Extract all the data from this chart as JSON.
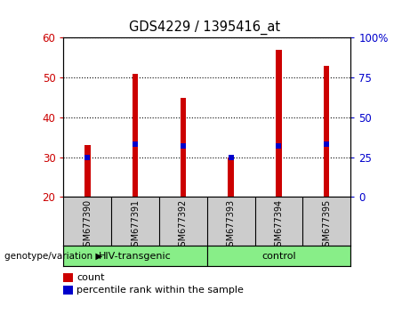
{
  "title": "GDS4229 / 1395416_at",
  "samples": [
    "GSM677390",
    "GSM677391",
    "GSM677392",
    "GSM677393",
    "GSM677394",
    "GSM677395"
  ],
  "counts": [
    33,
    51,
    45,
    30,
    57,
    53
  ],
  "percentile_ranks": [
    25,
    33,
    32,
    25,
    32,
    33
  ],
  "ylim_left": [
    20,
    60
  ],
  "ylim_right": [
    0,
    100
  ],
  "yticks_left": [
    20,
    30,
    40,
    50,
    60
  ],
  "yticks_right": [
    0,
    25,
    50,
    75,
    100
  ],
  "bar_color": "#cc0000",
  "marker_color": "#0000cc",
  "bar_width": 0.12,
  "groups": [
    {
      "label": "HIV-transgenic",
      "color": "#88ee88"
    },
    {
      "label": "control",
      "color": "#88ee88"
    }
  ],
  "group_label_prefix": "genotype/variation",
  "legend_count_label": "count",
  "legend_percentile_label": "percentile rank within the sample",
  "axis_label_color_left": "#cc0000",
  "axis_label_color_right": "#0000cc",
  "background_color": "#cccccc",
  "plot_bg_color": "#ffffff"
}
